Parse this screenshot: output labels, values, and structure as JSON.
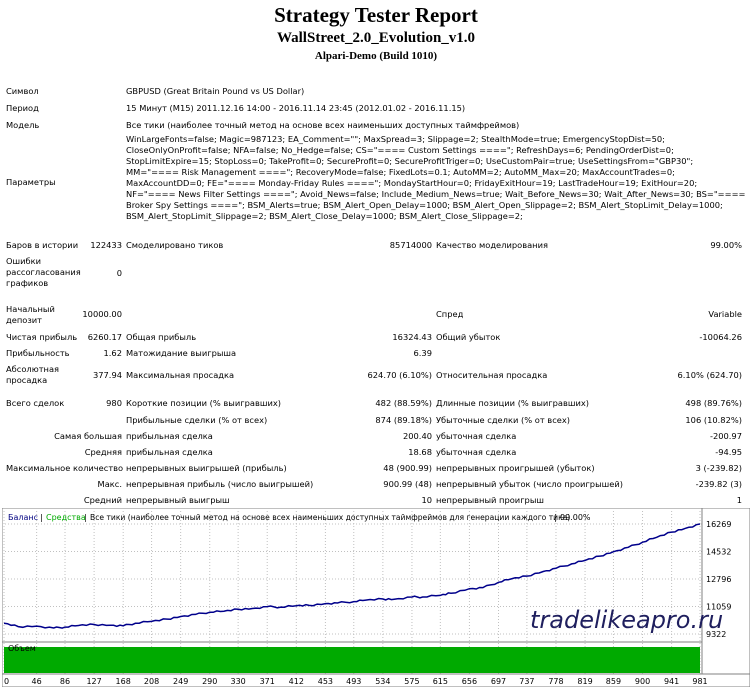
{
  "header": {
    "title": "Strategy Tester Report",
    "ea_name": "WallStreet_2.0_Evolution_v1.0",
    "broker": "Alpari-Demo (Build 1010)"
  },
  "info": {
    "symbol_label": "Символ",
    "symbol": "GBPUSD (Great Britain Pound vs US Dollar)",
    "period_label": "Период",
    "period": "15 Минут (M15) 2011.12.16 14:00 - 2016.11.14 23:45 (2012.01.02 - 2016.11.15)",
    "model_label": "Модель",
    "model": "Все тики (наиболее точный метод на основе всех наименьших доступных таймфреймов)",
    "params_label": "Параметры",
    "params": "WinLargeFonts=false; Magic=987123; EA_Comment=\"\"; MaxSpread=3; Slippage=2; StealthMode=true; EmergencyStopDist=50; CloseOnlyOnProfit=false; NFA=false; No_Hedge=false; CS=\"==== Custom Settings ====\"; RefreshDays=6; PendingOrderDist=0; StopLimitExpire=15; StopLoss=0; TakeProfit=0; SecureProfit=0; SecureProfitTriger=0; UseCustomPair=true; UseSettingsFrom=\"GBP30\"; MM=\"==== Risk Management ====\"; RecoveryMode=false; FixedLots=0.1; AutoMM=2; AutoMM_Max=20; MaxAccountTrades=0; MaxAccountDD=0; FE=\"==== Monday-Friday Rules ====\"; MondayStartHour=0; FridayExitHour=19; LastTradeHour=19; ExitHour=20; NF=\"==== News Filter Settings ====\"; Avoid_News=false; Include_Medium_News=true; Wait_Before_News=30; Wait_After_News=30; BS=\"==== Broker Spy Settings ====\"; BSM_Alerts=true; BSM_Alert_Open_Delay=1000; BSM_Alert_Open_Slippage=2; BSM_Alert_StopLimit_Delay=1000; BSM_Alert_StopLimit_Slippage=2; BSM_Alert_Close_Delay=1000; BSM_Alert_Close_Slippage=2;"
  },
  "stats": {
    "bars_label": "Баров в истории",
    "bars": "122433",
    "ticks_label": "Смоделировано тиков",
    "ticks": "85714000",
    "quality_label": "Качество моделирования",
    "quality": "99.00%",
    "errors_label": "Ошибки рассогласования графиков",
    "errors": "0",
    "deposit_label": "Начальный депозит",
    "deposit": "10000.00",
    "spread_label": "Спред",
    "spread": "Variable",
    "net_label": "Чистая прибыль",
    "net": "6260.17",
    "gross_profit_label": "Общая прибыль",
    "gross_profit": "16324.43",
    "gross_loss_label": "Общий убыток",
    "gross_loss": "-10064.26",
    "pf_label": "Прибыльность",
    "pf": "1.62",
    "expected_label": "Матожидание выигрыша",
    "expected": "6.39",
    "abs_dd_label": "Абсолютная просадка",
    "abs_dd": "377.94",
    "max_dd_label": "Максимальная просадка",
    "max_dd": "624.70 (6.10%)",
    "rel_dd_label": "Относительная просадка",
    "rel_dd": "6.10% (624.70)",
    "trades_label": "Всего сделок",
    "trades": "980",
    "short_label": "Короткие позиции (% выигравших)",
    "short": "482 (88.59%)",
    "long_label": "Длинные позиции (% выигравших)",
    "long": "498 (89.76%)",
    "profit_trades_label": "Прибыльные сделки (% от всех)",
    "profit_trades": "874 (89.18%)",
    "loss_trades_label": "Убыточные сделки (% от всех)",
    "loss_trades": "106 (10.82%)",
    "largest_label": "Самая большая",
    "largest_profit_label": "прибыльная сделка",
    "largest_profit": "200.40",
    "largest_loss_label": "убыточная сделка",
    "largest_loss": "-200.97",
    "average_label": "Средняя",
    "average_profit_label": "прибыльная сделка",
    "average_profit": "18.68",
    "average_loss_label": "убыточная сделка",
    "average_loss": "-94.95",
    "max_count_label": "Максимальное количество",
    "max_cons_wins_label": "непрерывных выигрышей (прибыль)",
    "max_cons_wins": "48 (900.99)",
    "max_cons_losses_label": "непрерывных проигрышей (убыток)",
    "max_cons_losses": "3 (-239.82)",
    "max_label": "Макс.",
    "max_cons_profit_label": "непрерывная прибыль (число выигрышей)",
    "max_cons_profit": "900.99 (48)",
    "max_cons_loss_label": "непрерывный убыток (число проигрышей)",
    "max_cons_loss": "-239.82 (3)",
    "avg_label": "Средний",
    "avg_cons_wins_label": "непрерывный выигрыш",
    "avg_cons_wins": "10",
    "avg_cons_losses_label": "непрерывный проигрыш",
    "avg_cons_losses": "1"
  },
  "chart_data": {
    "type": "line",
    "legend": {
      "balance": "Баланс",
      "equity": "Средства",
      "description": "Все тики (наиболее точный метод на основе всех наименьших доступных таймфреймов для генерации каждого тика)",
      "quality": "99.00%"
    },
    "volume_label": "Объем",
    "watermark": "tradelikeapro.ru",
    "x_ticks": [
      "0",
      "46",
      "86",
      "127",
      "168",
      "208",
      "249",
      "290",
      "330",
      "371",
      "412",
      "453",
      "493",
      "534",
      "575",
      "615",
      "656",
      "697",
      "737",
      "778",
      "819",
      "859",
      "900",
      "941",
      "981"
    ],
    "y_ticks": [
      "16269",
      "14532",
      "12796",
      "11059",
      "9322"
    ],
    "ylim": [
      9322,
      16269
    ],
    "xlim": [
      0,
      981
    ],
    "series": [
      {
        "name": "Баланс",
        "color": "#00008b",
        "x": [
          0,
          20,
          46,
          70,
          86,
          105,
          127,
          150,
          168,
          185,
          208,
          230,
          249,
          270,
          290,
          310,
          330,
          350,
          371,
          390,
          412,
          430,
          453,
          470,
          493,
          510,
          534,
          550,
          575,
          590,
          615,
          630,
          656,
          675,
          697,
          715,
          737,
          760,
          778,
          800,
          819,
          840,
          859,
          880,
          900,
          920,
          941,
          960,
          981
        ],
        "values": [
          10000,
          9790,
          9820,
          9700,
          9760,
          9860,
          9920,
          9880,
          9840,
          10000,
          10120,
          10260,
          10430,
          10560,
          10700,
          10760,
          10880,
          10930,
          11050,
          11020,
          11100,
          11130,
          11240,
          11280,
          11370,
          11460,
          11530,
          11520,
          11660,
          11660,
          11760,
          11900,
          12180,
          12250,
          12590,
          12800,
          12980,
          13270,
          13470,
          13750,
          13970,
          14240,
          14520,
          14800,
          15120,
          15430,
          15760,
          15990,
          16269
        ]
      }
    ],
    "colors": {
      "volume": "#00aa00",
      "grid": "#c0c0c0",
      "axis_text": "#000000",
      "watermark": "#1f1f5e"
    }
  }
}
